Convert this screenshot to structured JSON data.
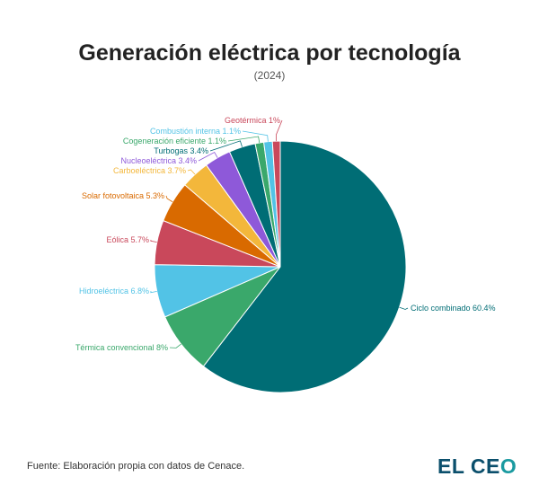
{
  "chart_data": {
    "type": "pie",
    "title": "Generación eléctrica por tecnología",
    "subtitle": "(2024)",
    "slices": [
      {
        "label": "Ciclo combinado",
        "value": 60.4,
        "text": "Ciclo combinado 60.4%",
        "color": "#006d75"
      },
      {
        "label": "Térmica convencional",
        "value": 8,
        "text": "Térmica convencional 8%",
        "color": "#3aa86b"
      },
      {
        "label": "Hidroeléctrica",
        "value": 6.8,
        "text": "Hidroeléctrica 6.8%",
        "color": "#52c3e6"
      },
      {
        "label": "Eólica",
        "value": 5.7,
        "text": "Eólica 5.7%",
        "color": "#c9485b"
      },
      {
        "label": "Solar fotovoltaica",
        "value": 5.3,
        "text": "Solar fotovoltaica 5.3%",
        "color": "#d96a00"
      },
      {
        "label": "Carboeléctrica",
        "value": 3.7,
        "text": "Carboeléctrica 3.7%",
        "color": "#f3b73b"
      },
      {
        "label": "Nucleoeléctrica",
        "value": 3.4,
        "text": "Nucleoeléctrica 3.4%",
        "color": "#8e59d9"
      },
      {
        "label": "Turbogas",
        "value": 3.4,
        "text": "Turbogas 3.4%",
        "color": "#006d75"
      },
      {
        "label": "Cogeneración eficiente",
        "value": 1.1,
        "text": "Cogeneración eficiente 1.1%",
        "color": "#3aa86b"
      },
      {
        "label": "Combustión interna",
        "value": 1.1,
        "text": "Combustión interna 1.1%",
        "color": "#52c3e6"
      },
      {
        "label": "Geotérmica",
        "value": 1,
        "text": "Geotérmica 1%",
        "color": "#c9485b"
      }
    ]
  },
  "source": "Fuente: Elaboración propia con datos de Cenace.",
  "logo": "EL CEO"
}
